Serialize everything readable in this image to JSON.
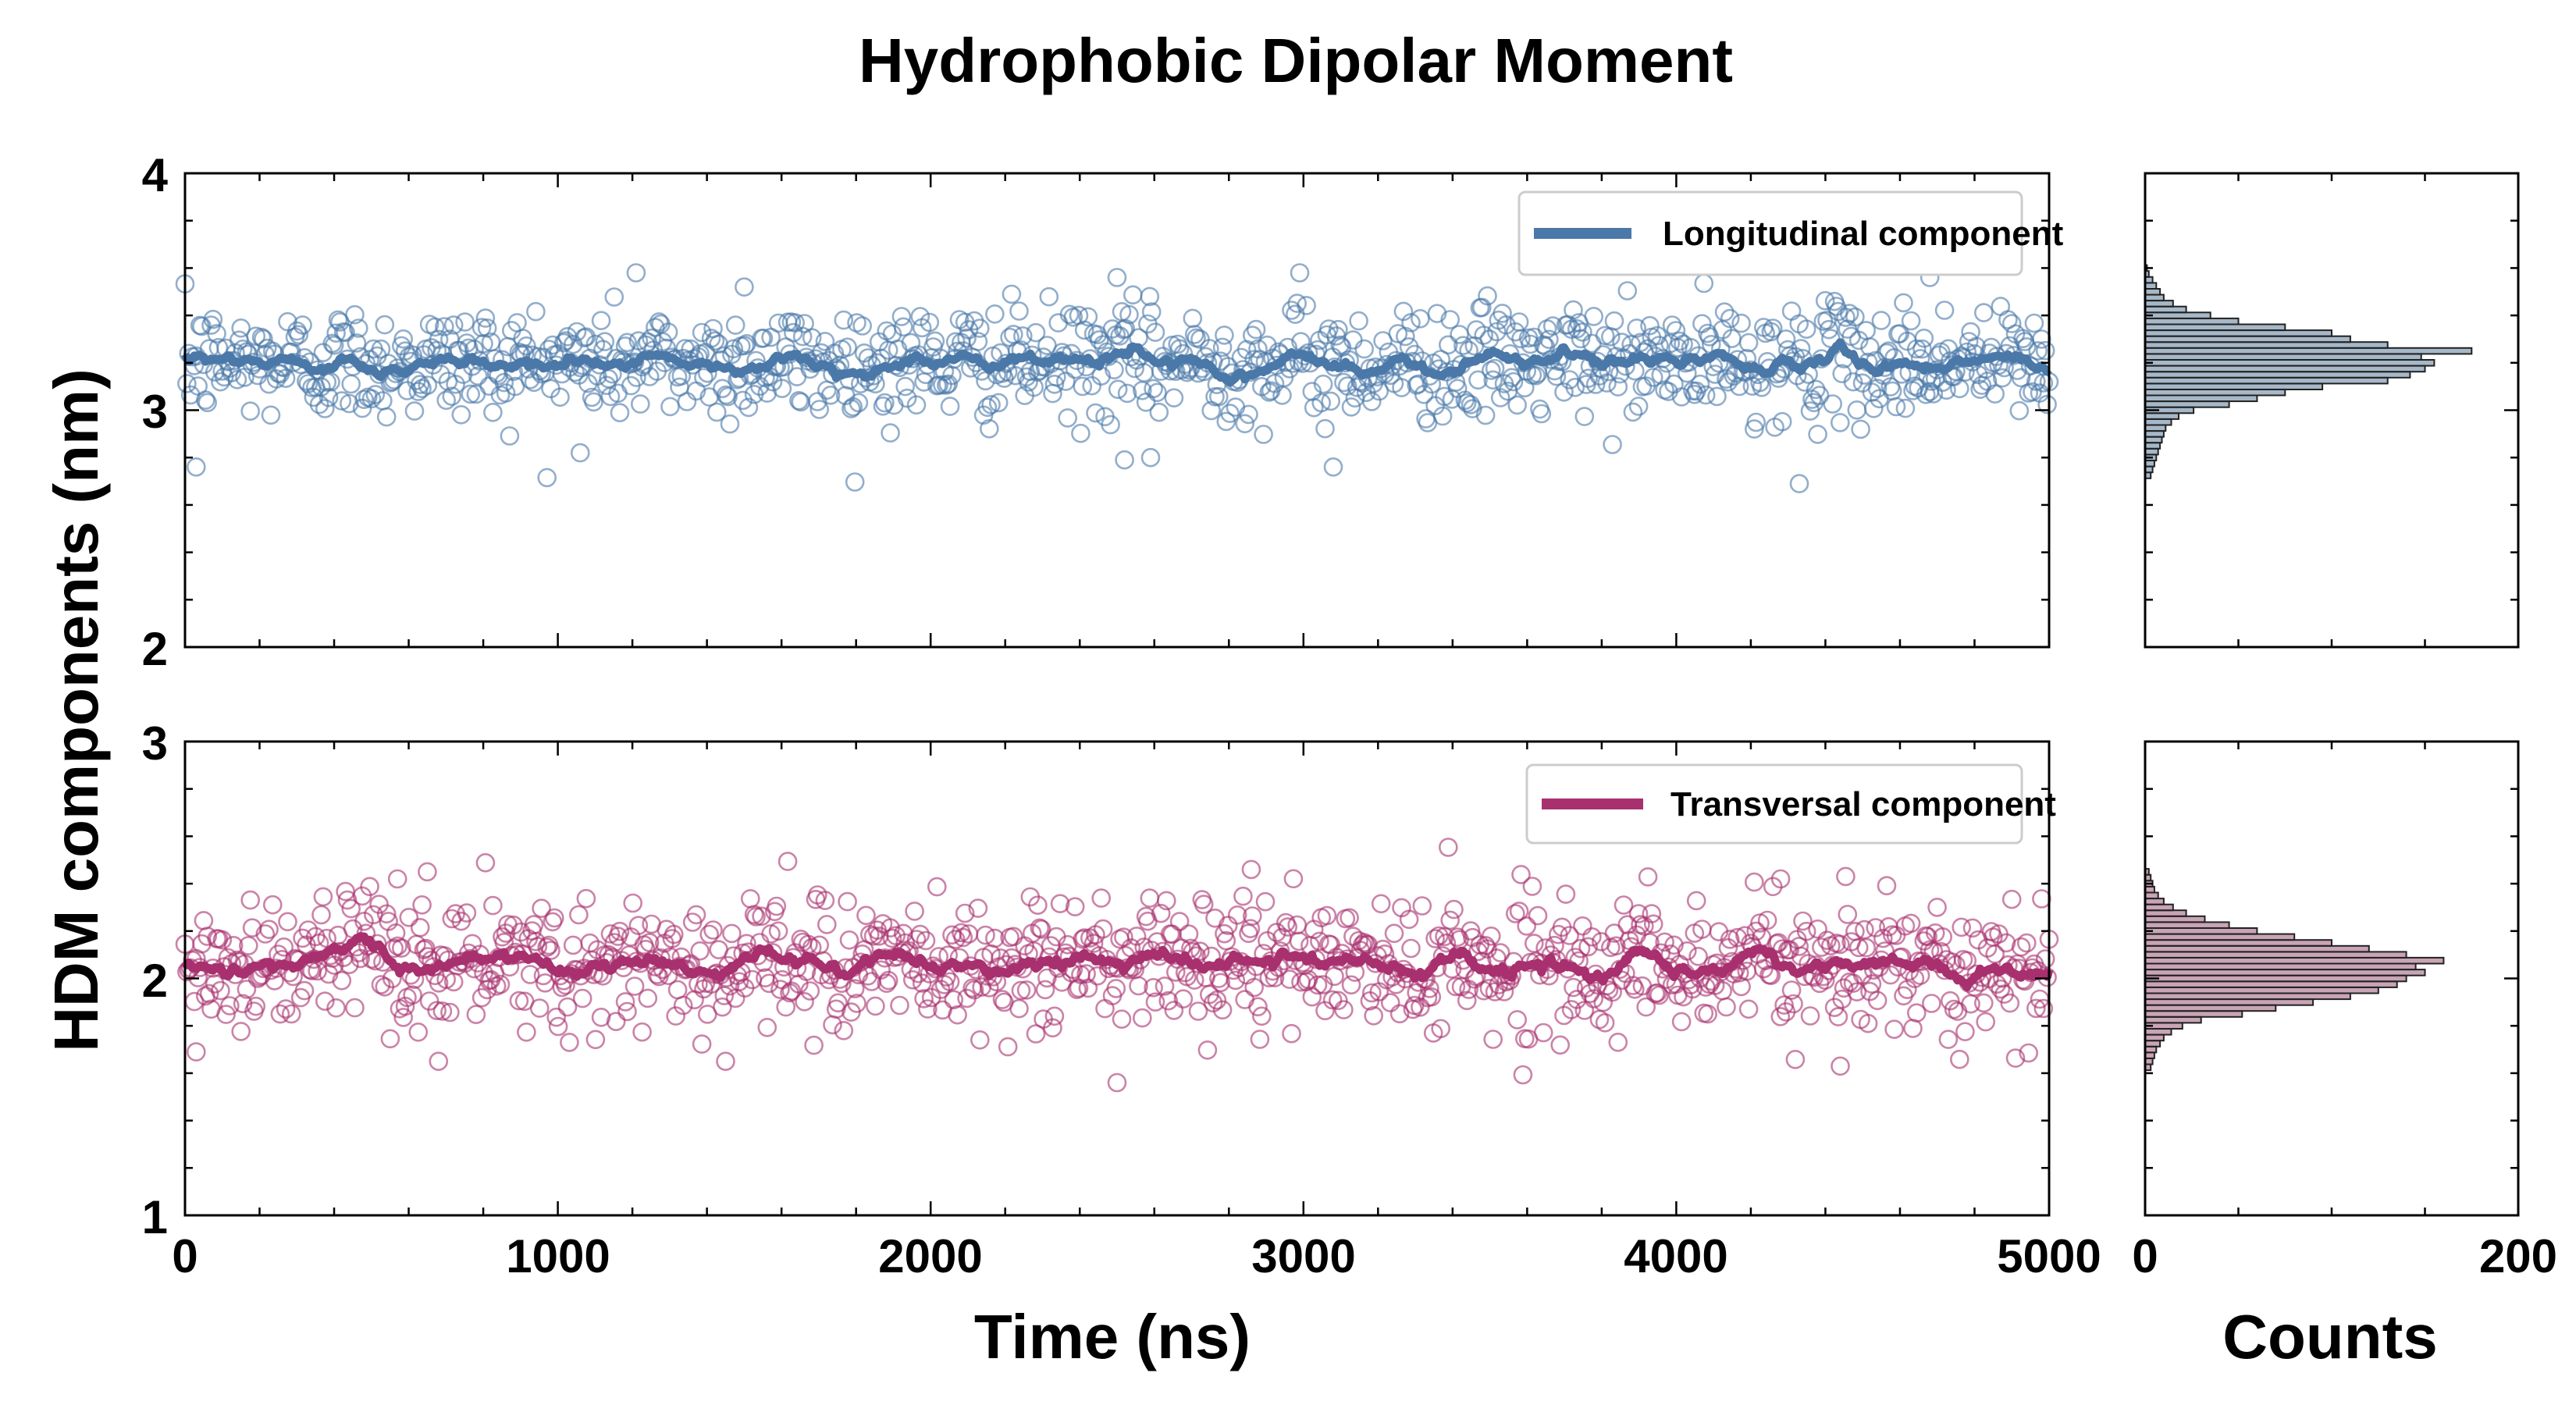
{
  "figure": {
    "title": "Hydrophobic Dipolar Moment",
    "ylabel": "HDM components (nm)",
    "xlabel_time": "Time (ns)",
    "xlabel_counts": "Counts"
  },
  "colors": {
    "longitudinal": "#4a78a8",
    "transversal": "#a8306e",
    "hist_top": "#5d7d9a",
    "hist_bottom": "#9a5a78"
  },
  "chart_data": [
    {
      "type": "scatter",
      "id": "longitudinal",
      "legend": "Longitudinal component",
      "xlim": [
        0,
        5000
      ],
      "ylim": [
        2,
        4
      ],
      "xticks": [
        "0",
        "1000",
        "2000",
        "3000",
        "4000",
        "5000"
      ],
      "yticks": [
        "2",
        "3",
        "4"
      ],
      "point_count": 1000,
      "mean": 3.2,
      "std": 0.12,
      "running_mean_window": 10,
      "outliers": [
        {
          "x": 30,
          "y": 2.76
        },
        {
          "x": 1210,
          "y": 3.58
        },
        {
          "x": 1500,
          "y": 3.52
        },
        {
          "x": 2500,
          "y": 3.56
        },
        {
          "x": 2520,
          "y": 2.79
        },
        {
          "x": 2590,
          "y": 2.8
        },
        {
          "x": 2990,
          "y": 3.58
        },
        {
          "x": 3080,
          "y": 2.76
        },
        {
          "x": 4330,
          "y": 2.69
        },
        {
          "x": 4680,
          "y": 3.56
        },
        {
          "x": 1060,
          "y": 2.82
        }
      ]
    },
    {
      "type": "scatter",
      "id": "transversal",
      "legend": "Transversal component",
      "xlim": [
        0,
        5000
      ],
      "ylim": [
        1,
        3
      ],
      "xticks": [
        "0",
        "1000",
        "2000",
        "3000",
        "4000",
        "5000"
      ],
      "yticks": [
        "1",
        "2",
        "3"
      ],
      "point_count": 1000,
      "mean": 2.06,
      "std": 0.14,
      "running_mean_window": 10,
      "outliers": [
        {
          "x": 650,
          "y": 2.45
        },
        {
          "x": 2860,
          "y": 2.46
        },
        {
          "x": 2500,
          "y": 1.56
        },
        {
          "x": 1450,
          "y": 1.65
        },
        {
          "x": 680,
          "y": 1.65
        },
        {
          "x": 4440,
          "y": 1.63
        },
        {
          "x": 30,
          "y": 1.69
        },
        {
          "x": 4280,
          "y": 2.42
        },
        {
          "x": 570,
          "y": 2.42
        }
      ]
    },
    {
      "type": "bar",
      "id": "hist_longitudinal",
      "orientation": "horizontal",
      "xlim": [
        0,
        200
      ],
      "ylim": [
        2,
        4
      ],
      "bin_width": 0.025,
      "bins": [
        {
          "y": 2.725,
          "count": 3
        },
        {
          "y": 2.75,
          "count": 4
        },
        {
          "y": 2.775,
          "count": 5
        },
        {
          "y": 2.8,
          "count": 6
        },
        {
          "y": 2.825,
          "count": 7
        },
        {
          "y": 2.85,
          "count": 8
        },
        {
          "y": 2.875,
          "count": 9
        },
        {
          "y": 2.9,
          "count": 10
        },
        {
          "y": 2.925,
          "count": 11
        },
        {
          "y": 2.95,
          "count": 14
        },
        {
          "y": 2.975,
          "count": 18
        },
        {
          "y": 3.0,
          "count": 26
        },
        {
          "y": 3.025,
          "count": 45
        },
        {
          "y": 3.05,
          "count": 60
        },
        {
          "y": 3.075,
          "count": 75
        },
        {
          "y": 3.1,
          "count": 95
        },
        {
          "y": 3.125,
          "count": 130
        },
        {
          "y": 3.15,
          "count": 142
        },
        {
          "y": 3.175,
          "count": 150
        },
        {
          "y": 3.2,
          "count": 155
        },
        {
          "y": 3.225,
          "count": 148
        },
        {
          "y": 3.25,
          "count": 175
        },
        {
          "y": 3.275,
          "count": 130
        },
        {
          "y": 3.3,
          "count": 110
        },
        {
          "y": 3.325,
          "count": 100
        },
        {
          "y": 3.35,
          "count": 75
        },
        {
          "y": 3.375,
          "count": 50
        },
        {
          "y": 3.4,
          "count": 35
        },
        {
          "y": 3.425,
          "count": 22
        },
        {
          "y": 3.45,
          "count": 15
        },
        {
          "y": 3.475,
          "count": 10
        },
        {
          "y": 3.5,
          "count": 8
        },
        {
          "y": 3.525,
          "count": 6
        },
        {
          "y": 3.55,
          "count": 4
        },
        {
          "y": 3.575,
          "count": 2
        },
        {
          "y": 3.6,
          "count": 1
        }
      ],
      "xticks": [
        "0",
        "200"
      ]
    },
    {
      "type": "bar",
      "id": "hist_transversal",
      "orientation": "horizontal",
      "xlim": [
        0,
        200
      ],
      "ylim": [
        1,
        3
      ],
      "bin_width": 0.025,
      "bins": [
        {
          "y": 1.625,
          "count": 3
        },
        {
          "y": 1.65,
          "count": 4
        },
        {
          "y": 1.675,
          "count": 5
        },
        {
          "y": 1.7,
          "count": 6
        },
        {
          "y": 1.725,
          "count": 8
        },
        {
          "y": 1.75,
          "count": 10
        },
        {
          "y": 1.775,
          "count": 14
        },
        {
          "y": 1.8,
          "count": 20
        },
        {
          "y": 1.825,
          "count": 30
        },
        {
          "y": 1.85,
          "count": 52
        },
        {
          "y": 1.875,
          "count": 70
        },
        {
          "y": 1.9,
          "count": 90
        },
        {
          "y": 1.925,
          "count": 110
        },
        {
          "y": 1.95,
          "count": 125
        },
        {
          "y": 1.975,
          "count": 135
        },
        {
          "y": 2.0,
          "count": 140
        },
        {
          "y": 2.025,
          "count": 150
        },
        {
          "y": 2.05,
          "count": 145
        },
        {
          "y": 2.075,
          "count": 160
        },
        {
          "y": 2.1,
          "count": 140
        },
        {
          "y": 2.125,
          "count": 120
        },
        {
          "y": 2.15,
          "count": 100
        },
        {
          "y": 2.175,
          "count": 80
        },
        {
          "y": 2.2,
          "count": 60
        },
        {
          "y": 2.225,
          "count": 45
        },
        {
          "y": 2.25,
          "count": 32
        },
        {
          "y": 2.275,
          "count": 22
        },
        {
          "y": 2.3,
          "count": 15
        },
        {
          "y": 2.325,
          "count": 10
        },
        {
          "y": 2.35,
          "count": 7
        },
        {
          "y": 2.375,
          "count": 5
        },
        {
          "y": 2.4,
          "count": 4
        },
        {
          "y": 2.425,
          "count": 3
        },
        {
          "y": 2.45,
          "count": 2
        }
      ],
      "xticks": [
        "0",
        "200"
      ]
    }
  ]
}
